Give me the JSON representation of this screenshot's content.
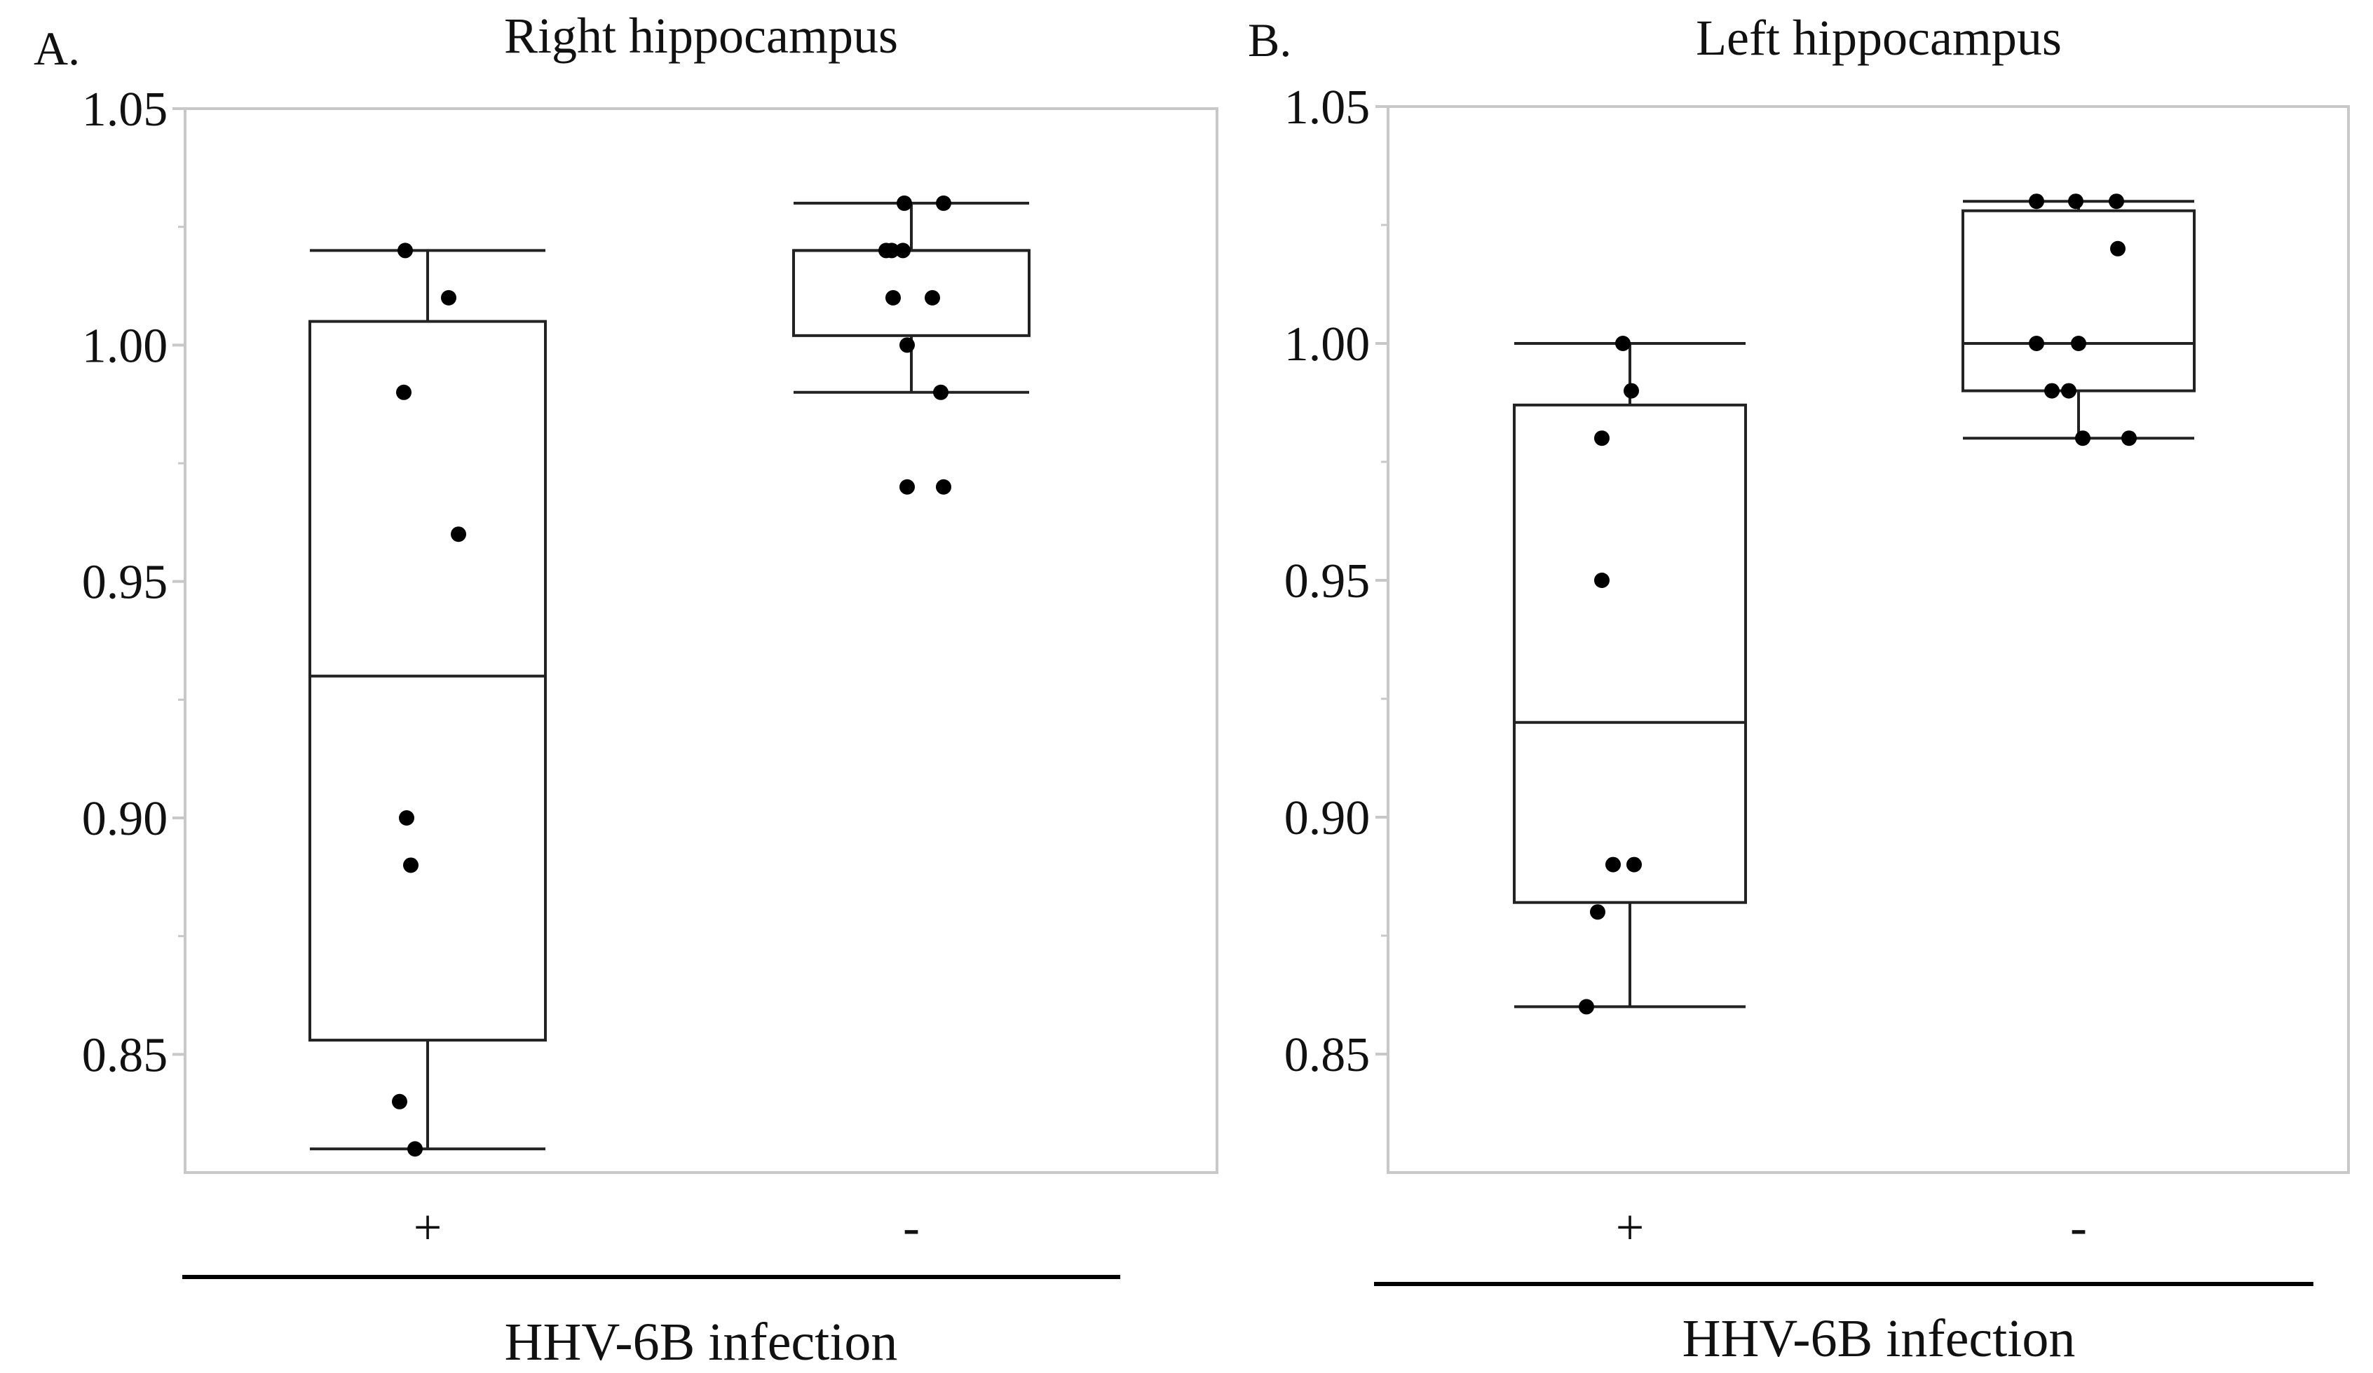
{
  "chart_data": [
    {
      "type": "box",
      "panel_letter": "A.",
      "title": "Right hippocampus",
      "xlabel": "HHV-6B infection",
      "ylabel": "",
      "ylim": [
        0.825,
        1.05
      ],
      "y_ticks": [
        "1.05",
        "1.00",
        "0.95",
        "0.90",
        "0.85"
      ],
      "y_tick_values": [
        1.05,
        1.0,
        0.95,
        0.9,
        0.85
      ],
      "categories": [
        "+",
        "-"
      ],
      "grid": false,
      "boxes": [
        {
          "category": "+",
          "whisker_low": 0.83,
          "q1": 0.853,
          "median": 0.93,
          "q3": 1.005,
          "whisker_high": 1.02,
          "points": [
            1.02,
            1.01,
            0.99,
            0.96,
            0.9,
            0.89,
            0.84,
            0.83
          ]
        },
        {
          "category": "-",
          "whisker_low": 0.99,
          "q1": 1.002,
          "median": 1.02,
          "q3": 1.02,
          "whisker_high": 1.03,
          "points": [
            1.03,
            1.03,
            1.02,
            1.02,
            1.02,
            1.01,
            1.01,
            1.0,
            0.99,
            0.97,
            0.97
          ]
        }
      ]
    },
    {
      "type": "box",
      "panel_letter": "B.",
      "title": "Left hippocampus",
      "xlabel": "HHV-6B infection",
      "ylabel": "",
      "ylim": [
        0.825,
        1.05
      ],
      "y_ticks": [
        "1.05",
        "1.00",
        "0.95",
        "0.90",
        "0.85"
      ],
      "y_tick_values": [
        1.05,
        1.0,
        0.95,
        0.9,
        0.85
      ],
      "categories": [
        "+",
        "-"
      ],
      "grid": false,
      "boxes": [
        {
          "category": "+",
          "whisker_low": 0.86,
          "q1": 0.882,
          "median": 0.92,
          "q3": 0.987,
          "whisker_high": 1.0,
          "points": [
            1.0,
            0.99,
            0.98,
            0.95,
            0.89,
            0.89,
            0.88,
            0.86
          ]
        },
        {
          "category": "-",
          "whisker_low": 0.98,
          "q1": 0.99,
          "median": 1.0,
          "q3": 1.028,
          "whisker_high": 1.03,
          "points": [
            1.03,
            1.03,
            1.03,
            1.02,
            1.0,
            1.0,
            0.99,
            0.99,
            0.98,
            0.98
          ]
        }
      ]
    }
  ]
}
